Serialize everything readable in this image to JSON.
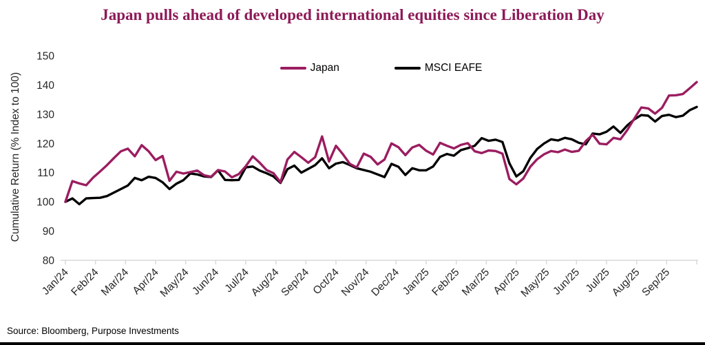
{
  "source": "Source: Bloomberg, Purpose Investments",
  "title_color": "#8D1A57",
  "chart_data": {
    "type": "line",
    "title": "Japan pulls ahead of developed international equities since Liberation Day",
    "xlabel": "",
    "ylabel": "Cumulative Return (% Index to 100)",
    "ylim": [
      80,
      150
    ],
    "ytick_step": 10,
    "grid": false,
    "legend_position": "top-center",
    "axis_color": "#D9D9D9",
    "tick_text_color": "#262626",
    "x_frequency": "weekly",
    "categories": [
      "Jan/24",
      "Feb/24",
      "Mar/24",
      "Apr/24",
      "May/24",
      "Jun/24",
      "Jul/24",
      "Aug/24",
      "Sep/24",
      "Oct/24",
      "Nov/24",
      "Dec/24",
      "Jan/25",
      "Feb/25",
      "Mar/25",
      "Apr/25",
      "May/25",
      "Jun/25",
      "Jul/25",
      "Aug/25",
      "Sep/25"
    ],
    "series": [
      {
        "name": "Japan",
        "color": "#9B1D60",
        "values": [
          100.0,
          107.1,
          106.3,
          105.7,
          108.3,
          110.4,
          112.6,
          115.0,
          117.3,
          118.2,
          115.6,
          119.4,
          117.3,
          114.3,
          115.7,
          107.2,
          110.3,
          109.7,
          110.2,
          110.7,
          109.1,
          108.6,
          110.9,
          110.4,
          108.4,
          109.5,
          112.2,
          115.6,
          113.4,
          110.9,
          109.8,
          106.7,
          114.5,
          117.1,
          115.3,
          113.4,
          115.3,
          122.4,
          113.8,
          119.2,
          116.3,
          113.0,
          111.8,
          116.5,
          115.4,
          112.8,
          114.5,
          120.0,
          118.7,
          116.0,
          118.6,
          119.5,
          117.5,
          116.2,
          120.2,
          119.2,
          118.3,
          119.5,
          120.1,
          117.3,
          116.7,
          117.6,
          117.4,
          116.5,
          107.8,
          106.0,
          108.0,
          112.0,
          114.6,
          116.3,
          117.4,
          117.0,
          117.9,
          117.1,
          117.5,
          120.8,
          123.0,
          119.9,
          119.7,
          121.9,
          121.4,
          124.6,
          128.5,
          132.3,
          132.0,
          130.2,
          132.2,
          136.4,
          136.5,
          136.9,
          138.9,
          141.0
        ]
      },
      {
        "name": "MSCI EAFE",
        "color": "#000000",
        "values": [
          100.0,
          101.2,
          99.2,
          101.2,
          101.3,
          101.4,
          102.0,
          103.2,
          104.4,
          105.6,
          108.2,
          107.4,
          108.6,
          108.2,
          106.7,
          104.4,
          106.2,
          107.4,
          109.7,
          109.4,
          108.7,
          108.5,
          110.8,
          107.5,
          107.4,
          107.5,
          111.8,
          112.1,
          110.7,
          109.8,
          108.7,
          106.5,
          111.2,
          112.4,
          110.0,
          111.3,
          112.6,
          114.9,
          111.5,
          113.1,
          113.6,
          112.6,
          111.5,
          110.9,
          110.3,
          109.4,
          108.5,
          113.0,
          112.0,
          109.2,
          111.5,
          110.8,
          110.8,
          112.1,
          115.4,
          116.4,
          115.8,
          117.7,
          118.4,
          119.2,
          121.8,
          120.9,
          121.3,
          120.5,
          113.2,
          108.7,
          110.5,
          115.0,
          118.1,
          120.0,
          121.4,
          121.0,
          121.9,
          121.4,
          120.2,
          119.7,
          123.4,
          123.1,
          124.0,
          125.8,
          123.6,
          126.2,
          128.2,
          129.7,
          129.5,
          127.5,
          129.4,
          129.8,
          129.0,
          129.5,
          131.4,
          132.5
        ]
      }
    ]
  }
}
